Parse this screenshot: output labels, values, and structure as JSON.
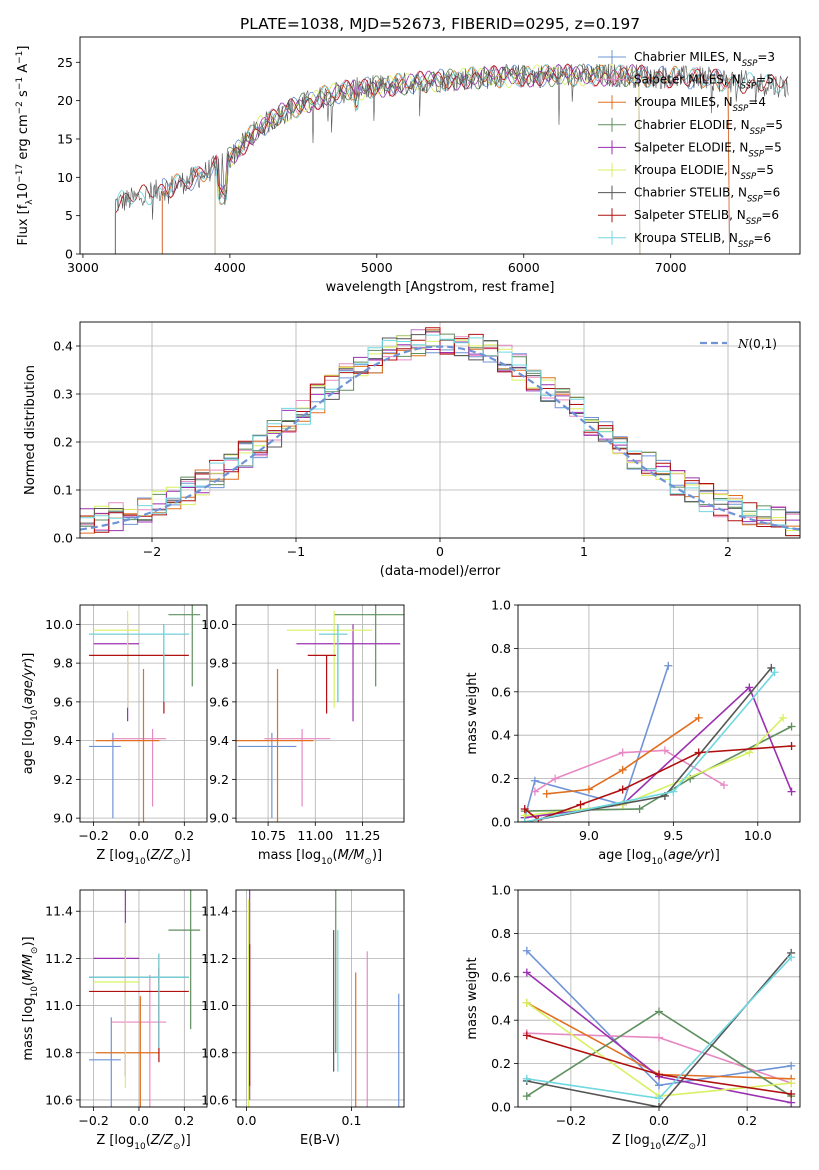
{
  "colors": {
    "Chabrier MILES": "#6f94d6",
    "Salpeter MILES": "#e78ac3",
    "Kroupa MILES": "#e07020",
    "Chabrier ELODIE": "#5f8f5f",
    "Salpeter ELODIE": "#9b30b0",
    "Kroupa ELODIE": "#d9f060",
    "Chabrier STELIB": "#555555",
    "Salpeter STELIB": "#b01010",
    "Kroupa STELIB": "#70d8e0"
  },
  "chart_data": [
    {
      "id": "spectrum",
      "type": "line",
      "title": "PLATE=1038, MJD=52673, FIBERID=0295, z=0.197",
      "xlabel": "wavelength [Angstrom, rest frame]",
      "ylabel": "Flux [fλ10⁻¹⁷ erg cm⁻² s⁻¹ A⁻¹]",
      "xlim": [
        2980,
        7880
      ],
      "ylim": [
        0,
        28.3
      ],
      "xticks": [
        3000,
        4000,
        5000,
        6000,
        7000
      ],
      "yticks": [
        0,
        5,
        10,
        15,
        20,
        25
      ],
      "continuum_x": [
        3200,
        3400,
        3600,
        3800,
        4000,
        4200,
        4400,
        4600,
        4800,
        5000,
        5200,
        5400,
        5600,
        5800,
        6000,
        6200,
        6400,
        6600,
        6800,
        7000,
        7200,
        7400,
        7600,
        7800
      ],
      "continuum_y": [
        6.5,
        7.5,
        8.8,
        10.2,
        12.5,
        16.5,
        18.8,
        20.3,
        21.3,
        21.8,
        22.2,
        22.6,
        22.9,
        23.1,
        23.2,
        23.3,
        23.3,
        23.3,
        23.2,
        23.1,
        22.9,
        22.6,
        22.2,
        21.9
      ],
      "legend": [
        {
          "label": "Chabrier MILES, N",
          "nsub": "SSP",
          "nval": "=3"
        },
        {
          "label": "Salpeter MILES, N",
          "nsub": "SSP",
          "nval": "=5"
        },
        {
          "label": "Kroupa MILES, N",
          "nsub": "SSP",
          "nval": "=4"
        },
        {
          "label": "Chabrier ELODIE, N",
          "nsub": "SSP",
          "nval": "=5"
        },
        {
          "label": "Salpeter ELODIE, N",
          "nsub": "SSP",
          "nval": "=5"
        },
        {
          "label": "Kroupa ELODIE, N",
          "nsub": "SSP",
          "nval": "=5"
        },
        {
          "label": "Chabrier STELIB, N",
          "nsub": "SSP",
          "nval": "=6"
        },
        {
          "label": "Salpeter STELIB, N",
          "nsub": "SSP",
          "nval": "=6"
        },
        {
          "label": "Kroupa STELIB, N",
          "nsub": "SSP",
          "nval": "=6"
        }
      ]
    },
    {
      "id": "residuals",
      "type": "line",
      "xlabel": "(data-model)/error",
      "ylabel": "Normed distribution",
      "xlim": [
        -2.5,
        2.5
      ],
      "ylim": [
        0,
        0.45
      ],
      "xticks": [
        -2,
        -1,
        0,
        1,
        2
      ],
      "yticks": [
        0.0,
        0.1,
        0.2,
        0.3,
        0.4
      ],
      "grid": true,
      "legend": "N(0,1)",
      "legend_position": "top-right",
      "bin_width": 0.1
    },
    {
      "id": "age_vs_Z",
      "type": "scatter",
      "xlabel": "Z [log10(Z/Z⊙)]",
      "ylabel": "age [log10(age/yr)]",
      "xlim": [
        -0.26,
        0.3
      ],
      "ylim": [
        8.98,
        10.1
      ],
      "xticks": [
        -0.2,
        0.0,
        0.2
      ],
      "yticks": [
        9.0,
        9.2,
        9.4,
        9.6,
        9.8,
        10.0
      ],
      "grid": true
    },
    {
      "id": "age_vs_mass",
      "type": "scatter",
      "xlabel": "mass [log10(M/M⊙)]",
      "xlim": [
        10.58,
        11.47
      ],
      "ylim": [
        8.98,
        10.1
      ],
      "xticks": [
        10.75,
        11.0,
        11.25
      ],
      "yticks": [
        9.0,
        9.2,
        9.4,
        9.6,
        9.8,
        10.0
      ],
      "grid": true
    },
    {
      "id": "weight_vs_age",
      "type": "line",
      "xlabel": "age [log10(age/yr)]",
      "ylabel": "mass weight",
      "xlim": [
        8.58,
        10.25
      ],
      "ylim": [
        0,
        1.0
      ],
      "xticks": [
        9.0,
        9.5,
        10.0
      ],
      "yticks": [
        0.0,
        0.2,
        0.4,
        0.6,
        0.8,
        1.0
      ],
      "grid": true
    },
    {
      "id": "mass_vs_Z",
      "type": "scatter",
      "xlabel": "Z [log10(Z/Z⊙)]",
      "ylabel": "mass [log10(M/M⊙)]",
      "xlim": [
        -0.26,
        0.3
      ],
      "ylim": [
        10.57,
        11.49
      ],
      "xticks": [
        -0.2,
        0.0,
        0.2
      ],
      "yticks": [
        10.6,
        10.8,
        11.0,
        11.2,
        11.4
      ],
      "grid": true
    },
    {
      "id": "mass_vs_ebv",
      "type": "scatter",
      "xlabel": "E(B-V)",
      "xlim": [
        -0.01,
        0.15
      ],
      "ylim": [
        10.57,
        11.49
      ],
      "xticks": [
        0.0,
        0.1
      ],
      "yticks": [
        10.6,
        10.8,
        11.0,
        11.2,
        11.4
      ],
      "grid": true
    },
    {
      "id": "weight_vs_Z",
      "type": "line",
      "xlabel": "Z [log10(Z/Z⊙)]",
      "ylabel": "mass weight",
      "xlim": [
        -0.32,
        0.32
      ],
      "ylim": [
        0,
        1.0
      ],
      "xticks": [
        -0.2,
        0.0,
        0.2
      ],
      "yticks": [
        0.0,
        0.2,
        0.4,
        0.6,
        0.8,
        1.0
      ],
      "grid": true
    }
  ],
  "models": [
    {
      "name": "Chabrier MILES",
      "Z": -0.15,
      "dZ": 0.07,
      "age": 9.37,
      "dage": 0.07,
      "mass": 10.77,
      "dmass": 0.08,
      "ebv": 0.145,
      "debv": 0.06,
      "w_age": [
        [
          8.62,
          0.02
        ],
        [
          8.68,
          0.19
        ],
        [
          9.2,
          0.08
        ],
        [
          9.47,
          0.72
        ]
      ],
      "w_Z": [
        [
          -0.3,
          0.72
        ],
        [
          0.0,
          0.1
        ],
        [
          0.3,
          0.19
        ]
      ]
    },
    {
      "name": "Salpeter MILES",
      "Z": 0.0,
      "dZ": 0.12,
      "age": 9.41,
      "dage": 0.05,
      "mass": 10.93,
      "dmass": 0.1,
      "ebv": 0.115,
      "debv": 0.08,
      "w_age": [
        [
          8.68,
          0.14
        ],
        [
          8.8,
          0.2
        ],
        [
          9.2,
          0.32
        ],
        [
          9.45,
          0.33
        ],
        [
          9.8,
          0.17
        ]
      ],
      "w_Z": [
        [
          -0.3,
          0.34
        ],
        [
          0.0,
          0.32
        ],
        [
          0.3,
          0.11
        ]
      ]
    },
    {
      "name": "Kroupa MILES",
      "Z": -0.05,
      "dZ": 0.14,
      "age": 9.4,
      "dage": 0.37,
      "mass": 10.8,
      "dmass": 0.14,
      "ebv": 0.104,
      "debv": 0.14,
      "w_age": [
        [
          8.75,
          0.13
        ],
        [
          9.0,
          0.15
        ],
        [
          9.2,
          0.24
        ],
        [
          9.65,
          0.48
        ]
      ],
      "w_Z": [
        [
          -0.3,
          0.48
        ],
        [
          0.0,
          0.15
        ],
        [
          0.3,
          0.13
        ]
      ]
    },
    {
      "name": "Chabrier ELODIE",
      "Z": 0.2,
      "dZ": 0.07,
      "age": 10.05,
      "dage": 0.07,
      "mass": 11.32,
      "dmass": 0.12,
      "ebv": 0.085,
      "debv": 0.05,
      "w_age": [
        [
          8.62,
          0.05
        ],
        [
          9.3,
          0.06
        ],
        [
          9.6,
          0.2
        ],
        [
          10.2,
          0.44
        ]
      ],
      "w_Z": [
        [
          -0.3,
          0.05
        ],
        [
          0.0,
          0.44
        ],
        [
          0.3,
          0.05
        ]
      ]
    },
    {
      "name": "Salpeter ELODIE",
      "Z": -0.1,
      "dZ": 0.1,
      "age": 9.9,
      "dage": 0.1,
      "mass": 11.2,
      "dmass": 0.2,
      "ebv": 0.003,
      "debv": 0.1,
      "w_age": [
        [
          8.62,
          0.02
        ],
        [
          9.2,
          0.08
        ],
        [
          9.95,
          0.62
        ],
        [
          10.2,
          0.14
        ]
      ],
      "w_Z": [
        [
          -0.3,
          0.62
        ],
        [
          0.0,
          0.14
        ],
        [
          0.3,
          0.02
        ]
      ]
    },
    {
      "name": "Kroupa ELODIE",
      "Z": -0.1,
      "dZ": 0.1,
      "age": 9.97,
      "dage": 0.1,
      "mass": 11.1,
      "dmass": 0.15,
      "ebv": 0.002,
      "debv": 0.2,
      "w_age": [
        [
          8.62,
          0.03
        ],
        [
          9.2,
          0.08
        ],
        [
          9.95,
          0.32
        ],
        [
          10.15,
          0.48
        ]
      ],
      "w_Z": [
        [
          -0.3,
          0.48
        ],
        [
          0.0,
          0.05
        ],
        [
          0.3,
          0.11
        ]
      ]
    },
    {
      "name": "Chabrier STELIB",
      "Z": 0.0,
      "dZ": 0.22,
      "age": 9.95,
      "dage": 0.05,
      "mass": 11.12,
      "dmass": 0.0,
      "ebv": 0.083,
      "debv": 0.2,
      "w_age": [
        [
          8.62,
          0.0
        ],
        [
          9.45,
          0.12
        ],
        [
          10.08,
          0.71
        ]
      ],
      "w_Z": [
        [
          -0.3,
          0.12
        ],
        [
          0.0,
          0.0
        ],
        [
          0.3,
          0.71
        ]
      ]
    },
    {
      "name": "Salpeter STELIB",
      "Z": 0.0,
      "dZ": 0.22,
      "age": 9.84,
      "dage": 0.0,
      "mass": 11.06,
      "dmass": 0.0,
      "ebv": 0.003,
      "debv": 0.0,
      "w_age": [
        [
          8.62,
          0.06
        ],
        [
          8.7,
          0.01
        ],
        [
          8.95,
          0.08
        ],
        [
          9.2,
          0.15
        ],
        [
          9.65,
          0.32
        ],
        [
          10.2,
          0.35
        ]
      ],
      "w_Z": [
        [
          -0.3,
          0.33
        ],
        [
          0.0,
          0.15
        ],
        [
          0.3,
          0.06
        ]
      ]
    },
    {
      "name": "Kroupa STELIB",
      "Z": 0.0,
      "dZ": 0.22,
      "age": 9.95,
      "dage": 0.05,
      "mass": 11.12,
      "dmass": 0.0,
      "ebv": 0.087,
      "debv": 0.2,
      "w_age": [
        [
          8.62,
          0.0
        ],
        [
          9.5,
          0.14
        ],
        [
          10.1,
          0.69
        ]
      ],
      "w_Z": [
        [
          -0.3,
          0.13
        ],
        [
          0.0,
          0.04
        ],
        [
          0.3,
          0.69
        ]
      ]
    }
  ]
}
